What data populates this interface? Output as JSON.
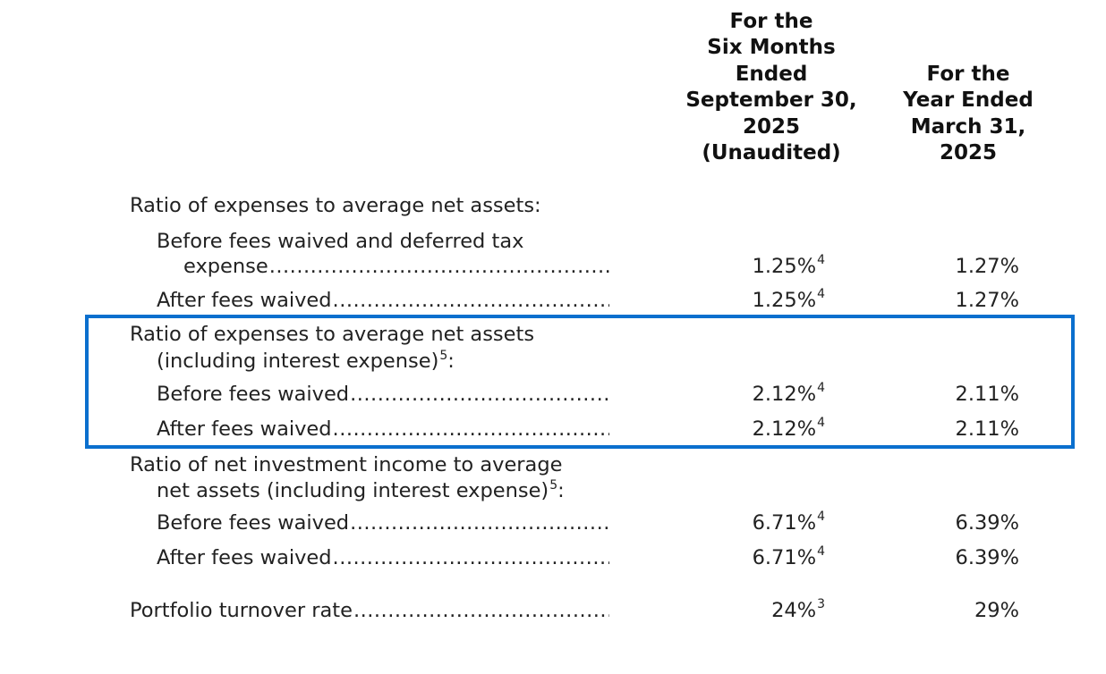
{
  "columns": {
    "six_months": [
      "For the",
      "Six Months",
      "Ended",
      "September 30,",
      "2025",
      "(Unaudited)"
    ],
    "year": [
      "For the",
      "Year Ended",
      "March 31,",
      "2025"
    ]
  },
  "sections": {
    "expenses": {
      "title": "Ratio of expenses to average net assets:",
      "before_label_1": "Before fees waived and deferred tax",
      "before_label_2": "expense",
      "before_c1": "1.25%",
      "before_c1_note": "4",
      "before_c2": "1.27%",
      "after_label": "After fees waived",
      "after_c1": "1.25%",
      "after_c1_note": "4",
      "after_c2": "1.27%"
    },
    "expenses_interest": {
      "title_1": "Ratio of expenses to average net assets",
      "title_2": "(including interest expense)",
      "title_note": "5",
      "title_suffix": ":",
      "before_label": "Before fees waived",
      "before_c1": "2.12%",
      "before_c1_note": "4",
      "before_c2": "2.11%",
      "after_label": "After fees waived",
      "after_c1": "2.12%",
      "after_c1_note": "4",
      "after_c2": "2.11%"
    },
    "income": {
      "title_1": "Ratio of net investment income to average",
      "title_2": "net assets (including interest expense)",
      "title_note": "5",
      "title_suffix": ":",
      "before_label": "Before fees waived",
      "before_c1": "6.71%",
      "before_c1_note": "4",
      "before_c2": "6.39%",
      "after_label": "After fees waived",
      "after_c1": "6.71%",
      "after_c1_note": "4",
      "after_c2": "6.39%"
    },
    "turnover": {
      "label": "Portfolio turnover rate",
      "c1": "24%",
      "c1_note": "3",
      "c2": "29%"
    }
  },
  "leader": "...................................................................................",
  "highlight_color": "#0a6fce"
}
